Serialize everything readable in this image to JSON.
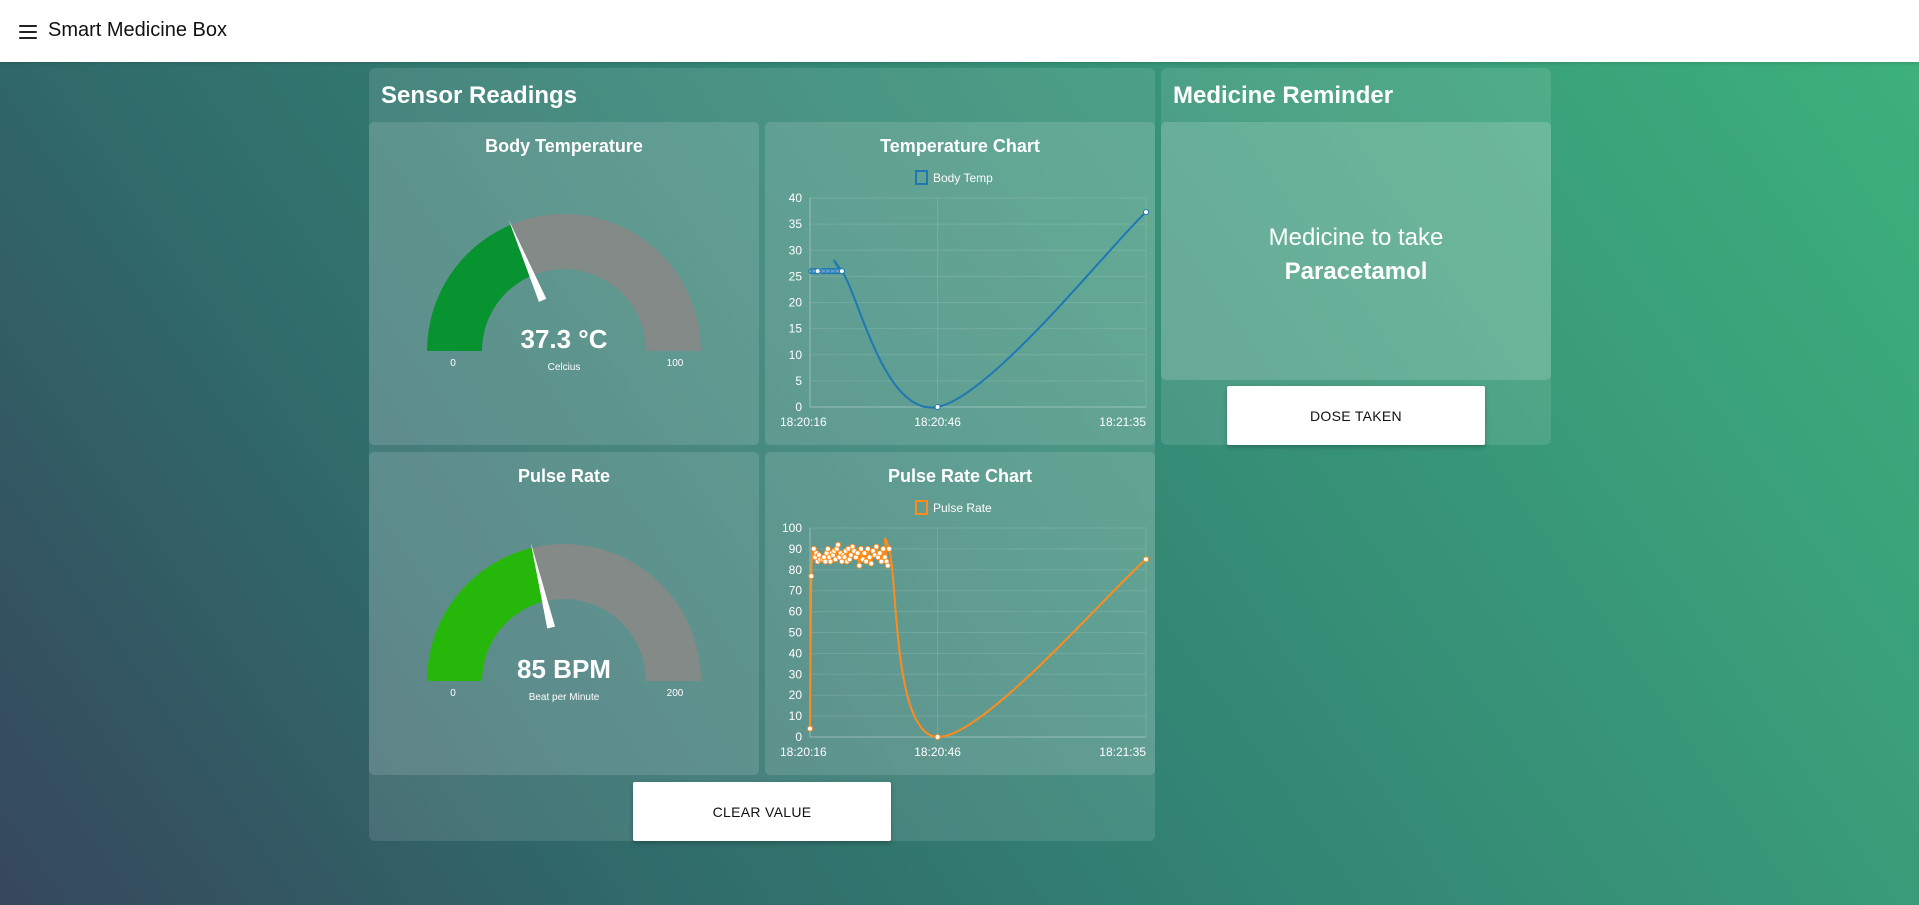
{
  "app": {
    "title": "Smart Medicine Box",
    "menu_icon": "hamburger-menu-icon"
  },
  "sensor_panel": {
    "title": "Sensor Readings",
    "clear_button": "CLEAR VALUE"
  },
  "temp_gauge": {
    "title": "Body Temperature",
    "value": 37.3,
    "display": "37.3 °C",
    "unit_label": "Celcius",
    "min": 0,
    "max": 100,
    "min_label": "0",
    "max_label": "100",
    "fill_color": "#069330",
    "track_color": "#848a87"
  },
  "pulse_gauge": {
    "title": "Pulse Rate",
    "value": 85,
    "display": "85 BPM",
    "unit_label": "Beat per Minute",
    "min": 0,
    "max": 200,
    "min_label": "0",
    "max_label": "200",
    "fill_color": "#25b80a",
    "track_color": "#848a87"
  },
  "temp_chart": {
    "title": "Temperature Chart"
  },
  "pulse_chart": {
    "title": "Pulse Rate Chart"
  },
  "chart_data": [
    {
      "type": "line",
      "title": "Temperature Chart",
      "legend": "top",
      "grid": true,
      "color": "#1f77b4",
      "series": [
        {
          "name": "Body Temp",
          "x": [
            0.3,
            0.6,
            0.9,
            1.2,
            1.5,
            1.8,
            3.0,
            3.3,
            3.6,
            3.9,
            4.2,
            4.5,
            4.8,
            5.1,
            5.4,
            5.7,
            6.0,
            6.3,
            6.6,
            6.9,
            7.2,
            7.5,
            30,
            79
          ],
          "y": [
            26,
            26,
            26,
            26,
            26,
            26,
            26,
            26,
            26,
            26,
            26,
            26,
            26,
            26,
            26,
            26,
            26,
            26,
            26,
            26,
            26,
            26,
            0,
            37.3
          ]
        }
      ],
      "xlim": [
        0,
        79
      ],
      "ylim": [
        0,
        40
      ],
      "yticks": [
        0,
        5,
        10,
        15,
        20,
        25,
        30,
        35,
        40
      ],
      "xticks": [
        {
          "v": 0,
          "label": "18:20:16"
        },
        {
          "v": 30,
          "label": "18:20:46"
        },
        {
          "v": 79,
          "label": "18:21:35"
        }
      ]
    },
    {
      "type": "line",
      "title": "Pulse Rate Chart",
      "legend": "top",
      "grid": true,
      "color": "#ff8c1a",
      "series": [
        {
          "name": "Pulse Rate",
          "x": [
            0,
            0.3,
            0.9,
            1.2,
            1.5,
            1.8,
            2.1,
            2.4,
            3.0,
            3.3,
            3.6,
            3.9,
            4.2,
            4.5,
            4.8,
            5.1,
            5.4,
            5.7,
            6.0,
            6.3,
            6.6,
            6.9,
            7.2,
            7.5,
            7.8,
            8.1,
            8.4,
            8.7,
            9.0,
            9.3,
            9.6,
            10.0,
            10.4,
            10.8,
            11.2,
            11.6,
            12.0,
            12.4,
            12.8,
            13.2,
            13.6,
            14.0,
            14.4,
            14.8,
            15.2,
            15.6,
            16.0,
            16.4,
            16.8,
            17.2,
            17.6,
            18.0,
            18.3,
            18.6,
            30,
            79
          ],
          "y": [
            4,
            77,
            90,
            86,
            88,
            84,
            87,
            85,
            85,
            86,
            84,
            88,
            90,
            86,
            84,
            88,
            87,
            89,
            85,
            90,
            92,
            86,
            88,
            84,
            87,
            86,
            89,
            84,
            90,
            85,
            87,
            91,
            89,
            86,
            88,
            82,
            90,
            85,
            88,
            84,
            90,
            86,
            83,
            89,
            87,
            91,
            86,
            88,
            84,
            90,
            86,
            84,
            82,
            90,
            0,
            85
          ]
        }
      ],
      "xlim": [
        0,
        79
      ],
      "ylim": [
        0,
        100
      ],
      "yticks": [
        0,
        10,
        20,
        30,
        40,
        50,
        60,
        70,
        80,
        90,
        100
      ],
      "xticks": [
        {
          "v": 0,
          "label": "18:20:16"
        },
        {
          "v": 30,
          "label": "18:20:46"
        },
        {
          "v": 79,
          "label": "18:21:35"
        }
      ]
    }
  ],
  "reminder_panel": {
    "title": "Medicine Reminder",
    "line1": "Medicine to take",
    "medicine": "Paracetamol",
    "dose_button": "DOSE TAKEN"
  }
}
